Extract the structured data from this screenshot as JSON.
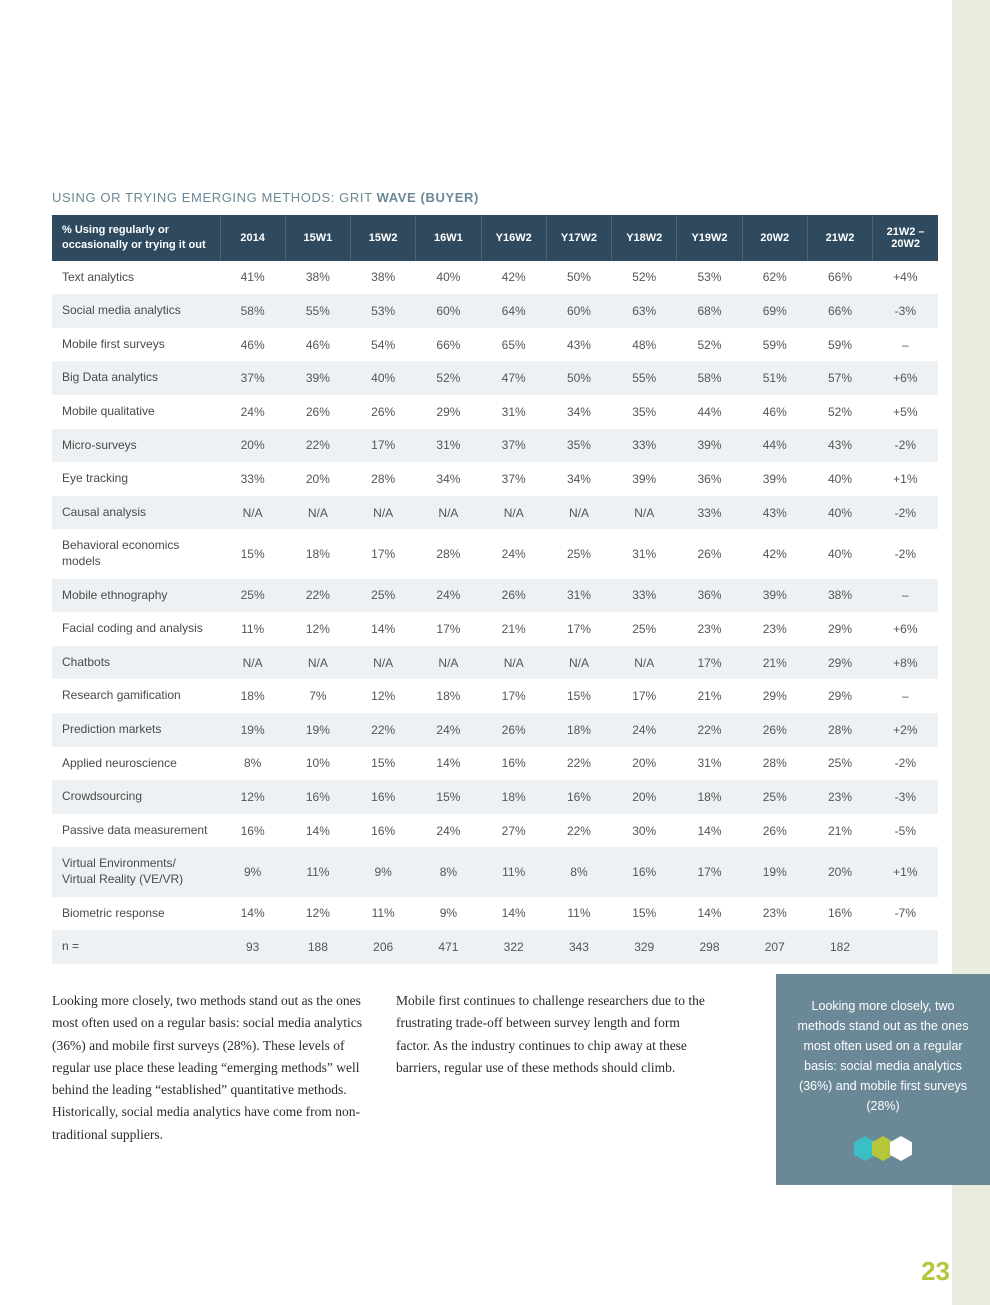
{
  "title_plain": "USING OR TRYING EMERGING METHODS: GRIT ",
  "title_bold": "WAVE (BUYER)",
  "table": {
    "header_first": "% Using regularly or occasionally or trying it out",
    "columns": [
      "2014",
      "15W1",
      "15W2",
      "16W1",
      "Y16W2",
      "Y17W2",
      "Y18W2",
      "Y19W2",
      "20W2",
      "21W2",
      "21W2 – 20W2"
    ],
    "rows": [
      {
        "label": "Text analytics",
        "cells": [
          "41%",
          "38%",
          "38%",
          "40%",
          "42%",
          "50%",
          "52%",
          "53%",
          "62%",
          "66%",
          "+4%"
        ]
      },
      {
        "label": "Social media analytics",
        "cells": [
          "58%",
          "55%",
          "53%",
          "60%",
          "64%",
          "60%",
          "63%",
          "68%",
          "69%",
          "66%",
          "-3%"
        ]
      },
      {
        "label": "Mobile first surveys",
        "cells": [
          "46%",
          "46%",
          "54%",
          "66%",
          "65%",
          "43%",
          "48%",
          "52%",
          "59%",
          "59%",
          "–"
        ]
      },
      {
        "label": "Big Data analytics",
        "cells": [
          "37%",
          "39%",
          "40%",
          "52%",
          "47%",
          "50%",
          "55%",
          "58%",
          "51%",
          "57%",
          "+6%"
        ]
      },
      {
        "label": "Mobile qualitative",
        "cells": [
          "24%",
          "26%",
          "26%",
          "29%",
          "31%",
          "34%",
          "35%",
          "44%",
          "46%",
          "52%",
          "+5%"
        ]
      },
      {
        "label": "Micro-surveys",
        "cells": [
          "20%",
          "22%",
          "17%",
          "31%",
          "37%",
          "35%",
          "33%",
          "39%",
          "44%",
          "43%",
          "-2%"
        ]
      },
      {
        "label": "Eye tracking",
        "cells": [
          "33%",
          "20%",
          "28%",
          "34%",
          "37%",
          "34%",
          "39%",
          "36%",
          "39%",
          "40%",
          "+1%"
        ]
      },
      {
        "label": "Causal analysis",
        "cells": [
          "N/A",
          "N/A",
          "N/A",
          "N/A",
          "N/A",
          "N/A",
          "N/A",
          "33%",
          "43%",
          "40%",
          "-2%"
        ]
      },
      {
        "label": "Behavioral economics models",
        "cells": [
          "15%",
          "18%",
          "17%",
          "28%",
          "24%",
          "25%",
          "31%",
          "26%",
          "42%",
          "40%",
          "-2%"
        ]
      },
      {
        "label": "Mobile ethnography",
        "cells": [
          "25%",
          "22%",
          "25%",
          "24%",
          "26%",
          "31%",
          "33%",
          "36%",
          "39%",
          "38%",
          "–"
        ]
      },
      {
        "label": "Facial coding and analysis",
        "cells": [
          "11%",
          "12%",
          "14%",
          "17%",
          "21%",
          "17%",
          "25%",
          "23%",
          "23%",
          "29%",
          "+6%"
        ]
      },
      {
        "label": "Chatbots",
        "cells": [
          "N/A",
          "N/A",
          "N/A",
          "N/A",
          "N/A",
          "N/A",
          "N/A",
          "17%",
          "21%",
          "29%",
          "+8%"
        ]
      },
      {
        "label": "Research gamification",
        "cells": [
          "18%",
          "7%",
          "12%",
          "18%",
          "17%",
          "15%",
          "17%",
          "21%",
          "29%",
          "29%",
          "–"
        ]
      },
      {
        "label": "Prediction markets",
        "cells": [
          "19%",
          "19%",
          "22%",
          "24%",
          "26%",
          "18%",
          "24%",
          "22%",
          "26%",
          "28%",
          "+2%"
        ]
      },
      {
        "label": "Applied neuroscience",
        "cells": [
          "8%",
          "10%",
          "15%",
          "14%",
          "16%",
          "22%",
          "20%",
          "31%",
          "28%",
          "25%",
          "-2%"
        ]
      },
      {
        "label": "Crowdsourcing",
        "cells": [
          "12%",
          "16%",
          "16%",
          "15%",
          "18%",
          "16%",
          "20%",
          "18%",
          "25%",
          "23%",
          "-3%"
        ]
      },
      {
        "label": "Passive data measurement",
        "cells": [
          "16%",
          "14%",
          "16%",
          "24%",
          "27%",
          "22%",
          "30%",
          "14%",
          "26%",
          "21%",
          "-5%"
        ]
      },
      {
        "label": "Virtual Environments/ Virtual Reality (VE/VR)",
        "cells": [
          "9%",
          "11%",
          "9%",
          "8%",
          "11%",
          "8%",
          "16%",
          "17%",
          "19%",
          "20%",
          "+1%"
        ]
      },
      {
        "label": "Biometric response",
        "cells": [
          "14%",
          "12%",
          "11%",
          "9%",
          "14%",
          "11%",
          "15%",
          "14%",
          "23%",
          "16%",
          "-7%"
        ]
      },
      {
        "label": "n =",
        "cells": [
          "93",
          "188",
          "206",
          "471",
          "322",
          "343",
          "329",
          "298",
          "207",
          "182",
          ""
        ]
      }
    ]
  },
  "paragraphs": {
    "p1": "Looking more closely, two methods stand out as the ones most often used on a regular basis: social media analytics (36%) and mobile first surveys (28%). These levels of regular use place these leading “emerging methods” well behind the leading “established” quantitative methods. Historically, social media analytics have come from non-traditional suppliers.",
    "p2": "Mobile first continues to challenge researchers due to the frustrating trade-off between survey length and form factor. As the industry continues to chip away at these barriers, regular use of these methods should climb."
  },
  "callout_text": "Looking more closely, two methods stand out as the ones most often used on a regular basis: social media analytics (36%) and mobile first surveys (28%)",
  "hex_colors": [
    "#3bbfc7",
    "#b6c63a",
    "#ffffff"
  ],
  "colors": {
    "side_strip": "#eaece0",
    "title": "#6b8896",
    "table_header_bg": "#2f4a5e",
    "table_header_border": "#4a6476",
    "row_even_bg": "#eef1f3",
    "callout_bg": "#6b8896",
    "page_num": "#b6c63a"
  },
  "page_number": "23"
}
